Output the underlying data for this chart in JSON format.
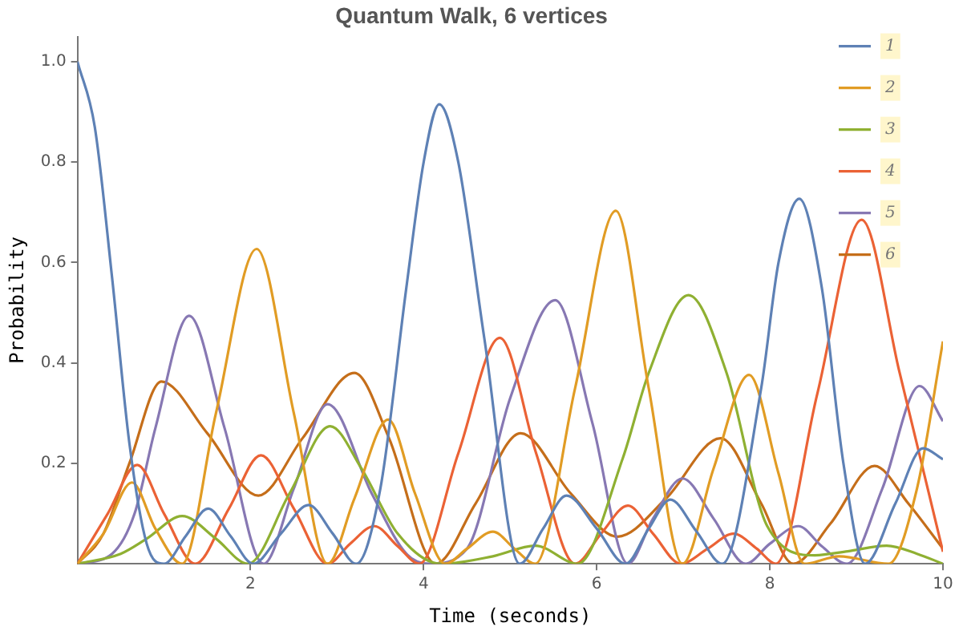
{
  "chart_data": {
    "type": "line",
    "title": "Quantum Walk, 6 vertices",
    "xlabel": "Time (seconds)",
    "ylabel": "Probability",
    "xlim": [
      0,
      10
    ],
    "xticks": [
      2,
      4,
      6,
      8,
      10
    ],
    "ylim": [
      0,
      1.05
    ],
    "yticks": [
      0.2,
      0.4,
      0.6,
      0.8,
      {
        "value": 1,
        "label": "1.0"
      }
    ],
    "grid": false,
    "legend": "top right",
    "marker": "none",
    "line_style": "solid",
    "series": [
      {
        "name": "1",
        "color": "#5e81b5",
        "x": [
          0,
          0.2,
          0.4,
          0.6,
          0.8,
          1.0,
          1.25,
          1.51,
          1.77,
          2.03,
          2.35,
          2.67,
          2.95,
          3.22,
          3.5,
          3.8,
          4.0,
          4.18,
          4.4,
          4.7,
          5.11,
          5.38,
          5.65,
          6.0,
          6.33,
          6.6,
          6.85,
          7.15,
          7.45,
          7.9,
          8.1,
          8.34,
          8.6,
          8.85,
          9.1,
          9.45,
          9.77,
          10
        ],
        "values": [
          1.0,
          0.87,
          0.57,
          0.24,
          0.04,
          0,
          0.055,
          0.11,
          0.055,
          0,
          0.06,
          0.117,
          0.06,
          0,
          0.15,
          0.55,
          0.8,
          0.915,
          0.8,
          0.45,
          0,
          0.07,
          0.136,
          0.07,
          0,
          0.07,
          0.128,
          0.065,
          0,
          0.35,
          0.6,
          0.727,
          0.55,
          0.2,
          0,
          0.12,
          0.23,
          0.208
        ]
      },
      {
        "name": "2",
        "color": "#e19c24",
        "x": [
          0,
          0.3,
          0.63,
          0.9,
          1.21,
          1.6,
          2.07,
          2.5,
          2.89,
          3.2,
          3.59,
          3.9,
          4.25,
          4.5,
          4.8,
          5.05,
          5.29,
          5.75,
          6.22,
          6.6,
          6.99,
          7.35,
          7.76,
          8.1,
          8.4,
          8.8,
          9.37,
          9.7,
          10
        ],
        "values": [
          0,
          0.06,
          0.162,
          0.07,
          0,
          0.3,
          0.627,
          0.3,
          0,
          0.13,
          0.287,
          0.14,
          0,
          0.03,
          0.064,
          0.03,
          0,
          0.35,
          0.703,
          0.35,
          0,
          0.19,
          0.376,
          0.18,
          0,
          0.015,
          0,
          0.15,
          0.443
        ]
      },
      {
        "name": "3",
        "color": "#8fb032",
        "x": [
          0,
          0.5,
          0.8,
          1.21,
          1.6,
          1.97,
          2.45,
          2.92,
          3.28,
          3.7,
          4.2,
          4.8,
          5.29,
          5.78,
          6.3,
          6.6,
          7.06,
          7.5,
          7.97,
          8.52,
          8.9,
          9.35,
          9.7,
          10
        ],
        "values": [
          0,
          0.02,
          0.05,
          0.095,
          0.05,
          0,
          0.14,
          0.274,
          0.19,
          0.06,
          0,
          0.015,
          0.036,
          0,
          0.21,
          0.38,
          0.535,
          0.38,
          0.075,
          0.017,
          0.025,
          0.036,
          0.02,
          0
        ]
      },
      {
        "name": "4",
        "color": "#eb6235",
        "x": [
          0,
          0.35,
          0.69,
          1.0,
          1.36,
          1.75,
          2.12,
          2.5,
          2.89,
          3.15,
          3.43,
          3.7,
          3.95,
          4.4,
          4.88,
          5.3,
          5.75,
          6.05,
          6.36,
          6.65,
          6.97,
          7.28,
          7.58,
          7.85,
          8.07,
          8.55,
          9.06,
          9.5,
          10
        ],
        "values": [
          0,
          0.1,
          0.197,
          0.1,
          0,
          0.11,
          0.216,
          0.11,
          0,
          0.04,
          0.075,
          0.035,
          0,
          0.22,
          0.45,
          0.22,
          0,
          0.06,
          0.116,
          0.06,
          0,
          0.03,
          0.06,
          0.03,
          0,
          0.34,
          0.685,
          0.38,
          0.024
        ]
      },
      {
        "name": "5",
        "color": "#8778b3",
        "x": [
          0,
          0.4,
          0.66,
          0.9,
          1.29,
          1.7,
          2.15,
          2.5,
          2.89,
          3.4,
          3.8,
          4.07,
          4.5,
          5.0,
          5.52,
          5.95,
          6.36,
          6.65,
          6.99,
          7.35,
          7.72,
          8.0,
          8.33,
          8.6,
          8.89,
          9.3,
          9.73,
          10
        ],
        "values": [
          0,
          0.02,
          0.1,
          0.27,
          0.494,
          0.27,
          0,
          0.15,
          0.318,
          0.14,
          0.02,
          0,
          0.03,
          0.33,
          0.525,
          0.28,
          0,
          0.09,
          0.17,
          0.09,
          0,
          0.04,
          0.075,
          0.035,
          0,
          0.15,
          0.354,
          0.284
        ]
      },
      {
        "name": "6",
        "color": "#c56e1a",
        "x": [
          0,
          0.3,
          0.6,
          0.97,
          1.5,
          2.09,
          2.6,
          3.2,
          3.6,
          4.14,
          4.6,
          5.12,
          5.7,
          6.24,
          6.8,
          7.43,
          7.9,
          8.27,
          8.7,
          9.21,
          9.6,
          10
        ],
        "values": [
          0,
          0.06,
          0.2,
          0.363,
          0.26,
          0.136,
          0.25,
          0.38,
          0.25,
          0,
          0.12,
          0.26,
          0.14,
          0.054,
          0.13,
          0.25,
          0.12,
          0,
          0.08,
          0.195,
          0.12,
          0.03
        ]
      }
    ]
  }
}
